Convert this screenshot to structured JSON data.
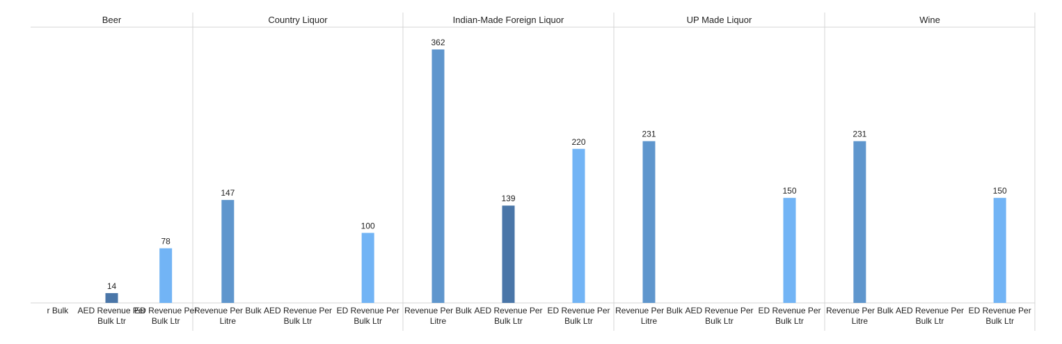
{
  "chart_data": {
    "type": "bar",
    "title": "",
    "xlabel": "",
    "ylabel": "",
    "ylim": [
      0,
      400
    ],
    "grid": false,
    "legend": "none",
    "colors": {
      "Revenue Per Bulk Litre": "#5f96cd",
      "AED Revenue Per Bulk Ltr": "#4a76a8",
      "ED Revenue Per Bulk Ltr": "#72b4f5"
    },
    "panels": [
      {
        "title": "Beer",
        "categories": [
          "Revenue Per Bulk Litre",
          "AED Revenue Per Bulk Ltr",
          "ED Revenue Per Bulk Ltr"
        ],
        "tick_labels": [
          [
            "r Bulk",
            ""
          ],
          [
            "AED Revenue Per",
            "Bulk Ltr"
          ],
          [
            "ED Revenue Per",
            "Bulk Ltr"
          ]
        ],
        "values": [
          null,
          14,
          78
        ]
      },
      {
        "title": "Country Liquor",
        "categories": [
          "Revenue Per Bulk Litre",
          "AED Revenue Per Bulk Ltr",
          "ED Revenue Per Bulk Ltr"
        ],
        "tick_labels": [
          [
            "Revenue Per Bulk",
            "Litre"
          ],
          [
            "AED Revenue Per",
            "Bulk Ltr"
          ],
          [
            "ED Revenue Per",
            "Bulk Ltr"
          ]
        ],
        "values": [
          147,
          null,
          100
        ]
      },
      {
        "title": "Indian-Made Foreign Liquor",
        "categories": [
          "Revenue Per Bulk Litre",
          "AED Revenue Per Bulk Ltr",
          "ED Revenue Per Bulk Ltr"
        ],
        "tick_labels": [
          [
            "Revenue Per Bulk",
            "Litre"
          ],
          [
            "AED Revenue Per",
            "Bulk Ltr"
          ],
          [
            "ED Revenue Per",
            "Bulk Ltr"
          ]
        ],
        "values": [
          362,
          139,
          220
        ]
      },
      {
        "title": "UP Made Liquor",
        "categories": [
          "Revenue Per Bulk Litre",
          "AED Revenue Per Bulk Ltr",
          "ED Revenue Per Bulk Ltr"
        ],
        "tick_labels": [
          [
            "Revenue Per Bulk",
            "Litre"
          ],
          [
            "AED Revenue Per",
            "Bulk Ltr"
          ],
          [
            "ED Revenue Per",
            "Bulk Ltr"
          ]
        ],
        "values": [
          231,
          null,
          150
        ]
      },
      {
        "title": "Wine",
        "categories": [
          "Revenue Per Bulk Litre",
          "AED Revenue Per Bulk Ltr",
          "ED Revenue Per Bulk Ltr"
        ],
        "tick_labels": [
          [
            "Revenue Per Bulk",
            "Litre"
          ],
          [
            "AED Revenue Per",
            "Bulk Ltr"
          ],
          [
            "ED Revenue Per",
            "Bulk Ltr"
          ]
        ],
        "values": [
          231,
          null,
          150
        ]
      }
    ]
  }
}
